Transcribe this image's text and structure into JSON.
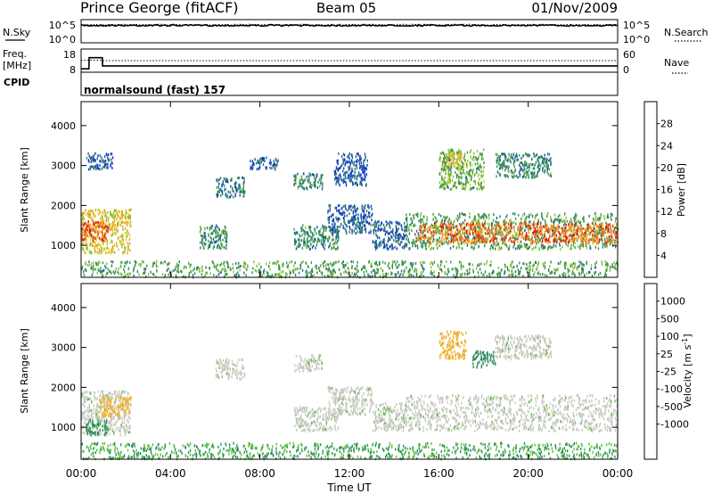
{
  "header": {
    "station": "Prince George (fitACF)",
    "beam": "Beam 05",
    "date": "01/Nov/2009"
  },
  "noise_panel": {
    "left_label": "N.Sky",
    "right_label": "N.Search",
    "left_ticks": [
      "10^5",
      "10^0"
    ],
    "right_ticks": [
      "10^5",
      "10^0"
    ],
    "nsky_level": 0.75,
    "nsearch_level": 0.78
  },
  "freq_panel": {
    "left_label_1": "Freq.",
    "left_label_2": "[MHz]",
    "right_label": "Nave",
    "left_ticks": [
      "18",
      "8"
    ],
    "right_ticks": [
      "60",
      "0"
    ],
    "freq_range": [
      8,
      18
    ],
    "nave_range": [
      0,
      60
    ],
    "freq_series": [
      {
        "t": 0.0,
        "mhz": 8.8
      },
      {
        "t": 0.35,
        "mhz": 8.8
      },
      {
        "t": 0.36,
        "mhz": 14.5
      },
      {
        "t": 0.95,
        "mhz": 14.5
      },
      {
        "t": 0.96,
        "mhz": 10.3
      },
      {
        "t": 24.0,
        "mhz": 10.3
      }
    ],
    "nave_series": [
      {
        "t": 0.0,
        "n": 31
      },
      {
        "t": 0.35,
        "n": 31
      },
      {
        "t": 0.36,
        "n": 31
      },
      {
        "t": 0.95,
        "n": 31
      },
      {
        "t": 0.96,
        "n": 30
      },
      {
        "t": 24.0,
        "n": 30
      }
    ],
    "nave_dotted_level": 30
  },
  "cpid": {
    "label": "CPID",
    "text": "normalsound (fast) 157"
  },
  "colors": {
    "bg": "#ffffff",
    "axis": "#000000",
    "power_scale": [
      "#1030d0",
      "#1c5aa8",
      "#2a7a6a",
      "#3b9a4a",
      "#88c030",
      "#e0d020",
      "#f0a020",
      "#f06010",
      "#e01010"
    ],
    "velocity_scale": [
      "#1c3ac8",
      "#2a6aa0",
      "#2a8a60",
      "#5ac040",
      "#c8c8c0",
      "#c8c8c0",
      "#f0b030",
      "#f08010",
      "#f04010",
      "#e01010"
    ]
  },
  "chart_data": [
    {
      "type": "heatmap",
      "name": "power",
      "xlabel": "",
      "ylabel": "Slant Range [km]",
      "x_range_hours": [
        0,
        24
      ],
      "ylim": [
        200,
        4600
      ],
      "y_ticks": [
        "1000",
        "2000",
        "3000",
        "4000"
      ],
      "colorbar": {
        "label": "Power [dB]",
        "ticks": [
          "4",
          "8",
          "12",
          "16",
          "20",
          "24",
          "28"
        ],
        "range": [
          0,
          32
        ]
      },
      "echo_regions": [
        {
          "t0": 0.0,
          "t1": 2.2,
          "r0": 800,
          "r1": 1900,
          "value": 20
        },
        {
          "t0": 0.0,
          "t1": 1.2,
          "r0": 1100,
          "r1": 1600,
          "value": 28
        },
        {
          "t0": 0.2,
          "t1": 1.4,
          "r0": 2900,
          "r1": 3300,
          "value": 6
        },
        {
          "t0": 5.3,
          "t1": 6.5,
          "r0": 900,
          "r1": 1500,
          "value": 10
        },
        {
          "t0": 6.0,
          "t1": 7.3,
          "r0": 2200,
          "r1": 2700,
          "value": 8
        },
        {
          "t0": 7.5,
          "t1": 8.8,
          "r0": 2900,
          "r1": 3200,
          "value": 6
        },
        {
          "t0": 9.5,
          "t1": 10.8,
          "r0": 2400,
          "r1": 2800,
          "value": 10
        },
        {
          "t0": 9.5,
          "t1": 11.5,
          "r0": 900,
          "r1": 1500,
          "value": 10
        },
        {
          "t0": 11.0,
          "t1": 13.0,
          "r0": 1300,
          "r1": 2000,
          "value": 6
        },
        {
          "t0": 11.3,
          "t1": 12.8,
          "r0": 2500,
          "r1": 3300,
          "value": 5
        },
        {
          "t0": 13.0,
          "t1": 14.6,
          "r0": 900,
          "r1": 1600,
          "value": 6
        },
        {
          "t0": 14.5,
          "t1": 24.0,
          "r0": 900,
          "r1": 1800,
          "value": 12
        },
        {
          "t0": 15.0,
          "t1": 24.0,
          "r0": 1050,
          "r1": 1550,
          "value": 26
        },
        {
          "t0": 16.0,
          "t1": 18.0,
          "r0": 2400,
          "r1": 3400,
          "value": 14
        },
        {
          "t0": 16.3,
          "t1": 17.0,
          "r0": 2900,
          "r1": 3300,
          "value": 20
        },
        {
          "t0": 18.5,
          "t1": 21.0,
          "r0": 2700,
          "r1": 3300,
          "value": 10
        },
        {
          "t0": 0.0,
          "t1": 24.0,
          "r0": 200,
          "r1": 600,
          "value": 12
        }
      ]
    },
    {
      "type": "heatmap",
      "name": "velocity",
      "xlabel": "Time UT",
      "ylabel": "Slant Range [km]",
      "x_range_hours": [
        0,
        24
      ],
      "x_ticks": [
        "00:00",
        "04:00",
        "08:00",
        "12:00",
        "16:00",
        "20:00",
        "00:00"
      ],
      "ylim": [
        200,
        4600
      ],
      "y_ticks": [
        "1000",
        "2000",
        "3000",
        "4000"
      ],
      "colorbar": {
        "label": "Velocity [m s",
        "label_sup": "-1",
        "label_end": "]",
        "ticks": [
          "1000",
          "500",
          "100",
          "25",
          "-25",
          "-100",
          "-500",
          "-1000"
        ]
      },
      "echo_regions": [
        {
          "t0": 0.0,
          "t1": 2.2,
          "r0": 800,
          "r1": 1900,
          "value": 0
        },
        {
          "t0": 0.8,
          "t1": 2.2,
          "r0": 1250,
          "r1": 1750,
          "value": -150
        },
        {
          "t0": 0.2,
          "t1": 1.2,
          "r0": 800,
          "r1": 1200,
          "value": 120
        },
        {
          "t0": 6.0,
          "t1": 7.3,
          "r0": 2200,
          "r1": 2700,
          "value": 0
        },
        {
          "t0": 9.5,
          "t1": 10.8,
          "r0": 2400,
          "r1": 2800,
          "value": 0
        },
        {
          "t0": 9.5,
          "t1": 11.5,
          "r0": 900,
          "r1": 1500,
          "value": 0
        },
        {
          "t0": 11.0,
          "t1": 13.0,
          "r0": 1300,
          "r1": 2000,
          "value": 0
        },
        {
          "t0": 13.0,
          "t1": 14.6,
          "r0": 900,
          "r1": 1600,
          "value": 0
        },
        {
          "t0": 14.5,
          "t1": 24.0,
          "r0": 900,
          "r1": 1800,
          "value": 0
        },
        {
          "t0": 16.0,
          "t1": 17.2,
          "r0": 2700,
          "r1": 3400,
          "value": -400
        },
        {
          "t0": 17.5,
          "t1": 18.5,
          "r0": 2500,
          "r1": 2900,
          "value": 400
        },
        {
          "t0": 18.5,
          "t1": 21.0,
          "r0": 2700,
          "r1": 3300,
          "value": 0
        },
        {
          "t0": 0.0,
          "t1": 24.0,
          "r0": 200,
          "r1": 600,
          "value": 100
        }
      ]
    }
  ]
}
